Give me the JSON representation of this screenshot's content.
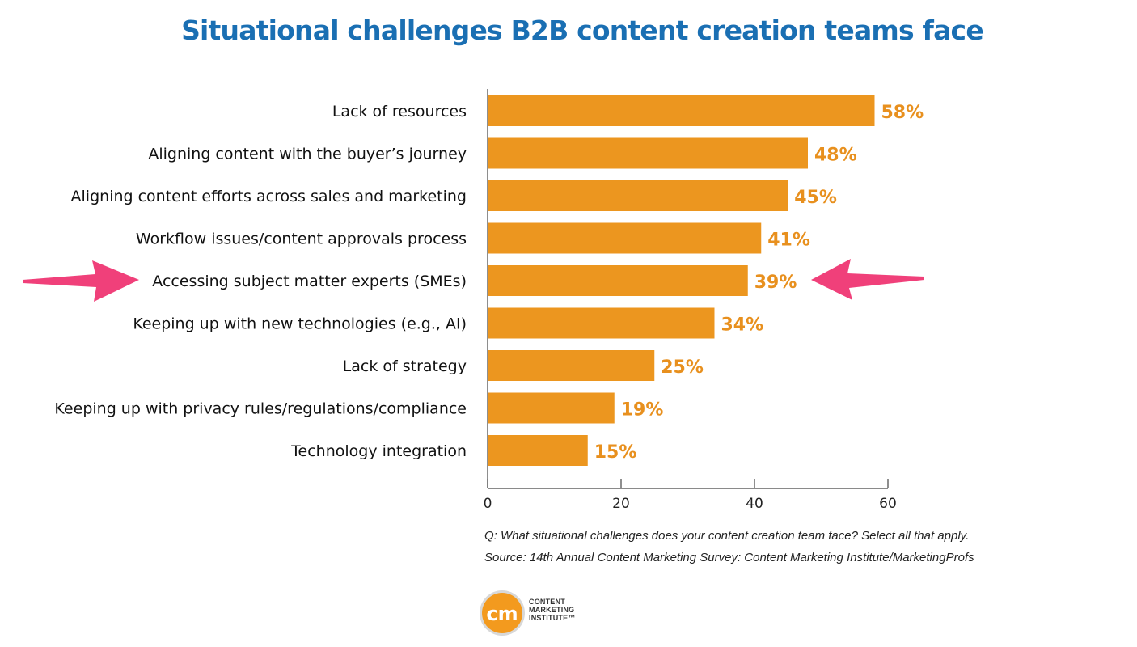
{
  "title": "Situational challenges B2B content creation teams face",
  "chart_data": {
    "type": "bar",
    "orientation": "horizontal",
    "categories": [
      "Lack of resources",
      "Aligning content with the buyer’s journey",
      "Aligning content efforts across sales and marketing",
      "Workflow issues/content approvals process",
      "Accessing subject matter experts (SMEs)",
      "Keeping up with new technologies (e.g., AI)",
      "Lack of strategy",
      "Keeping up with privacy rules/regulations/compliance",
      "Technology integration"
    ],
    "values": [
      58,
      48,
      45,
      41,
      39,
      34,
      25,
      19,
      15
    ],
    "value_labels": [
      "58%",
      "48%",
      "45%",
      "41%",
      "39%",
      "34%",
      "25%",
      "19%",
      "15%"
    ],
    "xlim": [
      0,
      60
    ],
    "xticks": [
      "0",
      "20",
      "40",
      "60"
    ],
    "grid": false,
    "bar_color": "#ec961f",
    "highlighted_category": "Accessing subject matter experts (SMEs)",
    "highlight_arrow_color": "#f0407a"
  },
  "footnotes": {
    "question": "Q: What situational challenges does your content creation team face? Select all that apply.",
    "source": "Source: 14th Annual Content Marketing Survey: Content Marketing Institute/MarketingProfs"
  },
  "logo": {
    "mark": "cm",
    "line1": "CONTENT",
    "line2": "MARKETING",
    "line3": "INSTITUTE™"
  },
  "colors": {
    "title": "#1a6fb3",
    "bar": "#ec961f",
    "value_label": "#e8901e",
    "arrow": "#f0407a",
    "logo_orange": "#f39a1e"
  }
}
